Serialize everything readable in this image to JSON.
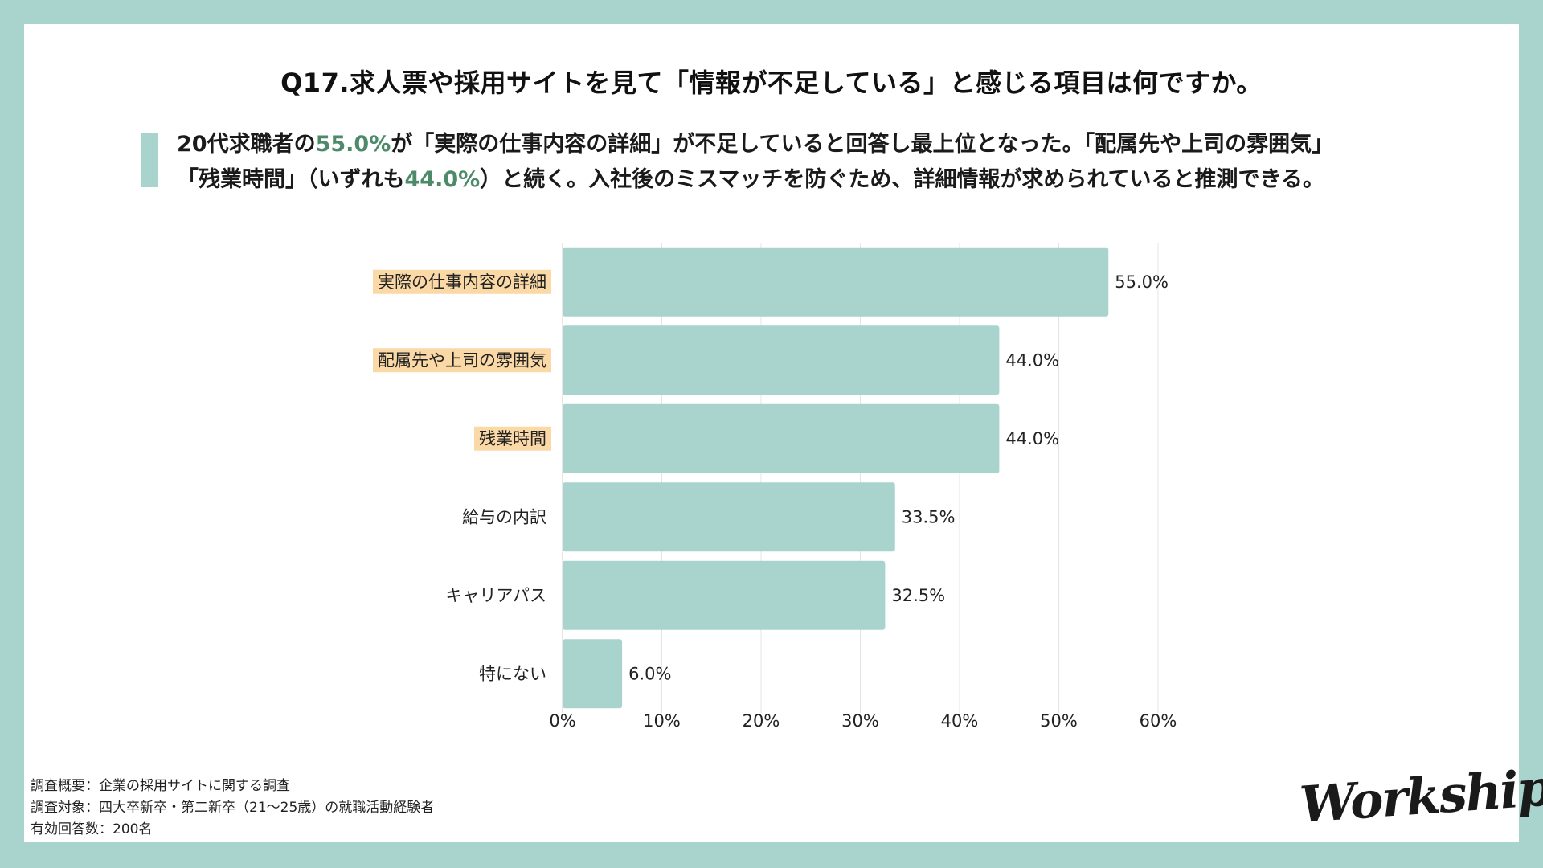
{
  "title": "Q17.求人票や採用サイトを見て「情報が不足している」と感じる項目は何ですか。",
  "summary": {
    "line1_a": "20代求職者の",
    "line1_hl": "55.0%",
    "line1_b": "が「実際の仕事内容の詳細」が不足していると回答し最上位となった。「配属先や上司の雰囲気」",
    "line2_a": "「残業時間」（いずれも",
    "line2_hl": "44.0%",
    "line2_b": "）と続く。入社後のミスマッチを防ぐため、詳細情報が求められていると推測できる。"
  },
  "colors": {
    "bar": "#a9d3cd",
    "highlight_label_bg": "#fbd9a6",
    "accent_text": "#4d8a6a",
    "frame": "#a9d3cd",
    "grid": "#e4e4e4"
  },
  "chart_data": {
    "type": "bar",
    "orientation": "horizontal",
    "categories": [
      "実際の仕事内容の詳細",
      "配属先や上司の雰囲気",
      "残業時間",
      "給与の内訳",
      "キャリアパス",
      "特にない"
    ],
    "values": [
      55.0,
      44.0,
      44.0,
      33.5,
      32.5,
      6.0
    ],
    "value_labels": [
      "55.0%",
      "44.0%",
      "44.0%",
      "33.5%",
      "32.5%",
      "6.0%"
    ],
    "highlighted": [
      true,
      true,
      true,
      false,
      false,
      false
    ],
    "xlim": [
      0,
      60
    ],
    "xticks": [
      0,
      10,
      20,
      30,
      40,
      50,
      60
    ],
    "xtick_labels": [
      "0%",
      "10%",
      "20%",
      "30%",
      "40%",
      "50%",
      "60%"
    ],
    "grid": true,
    "title": "Q17.求人票や採用サイトを見て「情報が不足している」と感じる項目は何ですか。",
    "xlabel": "",
    "ylabel": ""
  },
  "footer": {
    "line1": "調査概要：企業の採用サイトに関する調査",
    "line2": "調査対象：四大卒新卒・第二新卒（21〜25歳）の就職活動経験者",
    "line3": "有効回答数：200名"
  },
  "logo": {
    "text": "Workship"
  }
}
